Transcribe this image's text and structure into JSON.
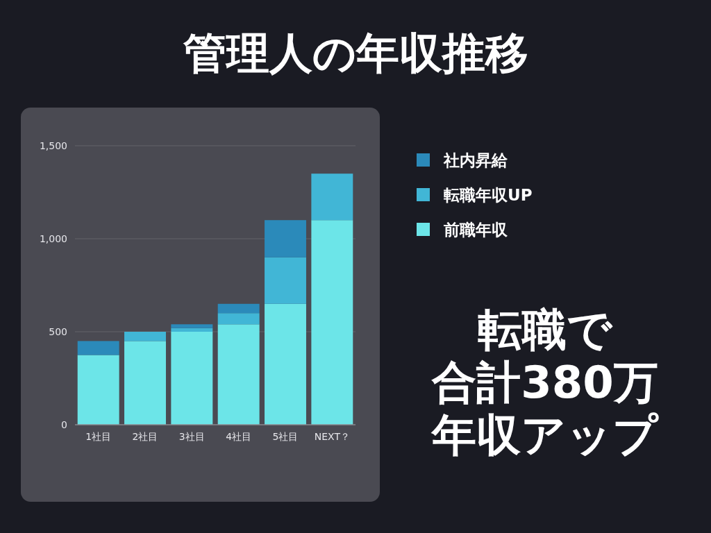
{
  "chart_data": {
    "type": "bar",
    "title": "管理人の年収推移",
    "stacked": true,
    "categories": [
      "1社目",
      "2社目",
      "3社目",
      "4社目",
      "5社目",
      "NEXT？"
    ],
    "series": [
      {
        "name": "前職年収",
        "color": "#6ce5e8",
        "values": [
          375,
          450,
          500,
          540,
          650,
          1100
        ]
      },
      {
        "name": "転職年収UP",
        "color": "#41b6d6",
        "values": [
          null,
          50,
          20,
          60,
          250,
          250
        ]
      },
      {
        "name": "社内昇給",
        "color": "#2b8aba",
        "values": [
          75,
          null,
          20,
          50,
          200,
          null
        ]
      }
    ],
    "ylim": [
      0,
      1500
    ],
    "yticks": [
      0,
      {
        "value": 500,
        "label": "500"
      },
      {
        "value": 1000,
        "label": "1,000"
      },
      {
        "value": 1500,
        "label": "1,500"
      }
    ],
    "grid": "y",
    "legend": "right",
    "annotations": [
      "転職で",
      "合計380万",
      "年収アップ"
    ]
  }
}
